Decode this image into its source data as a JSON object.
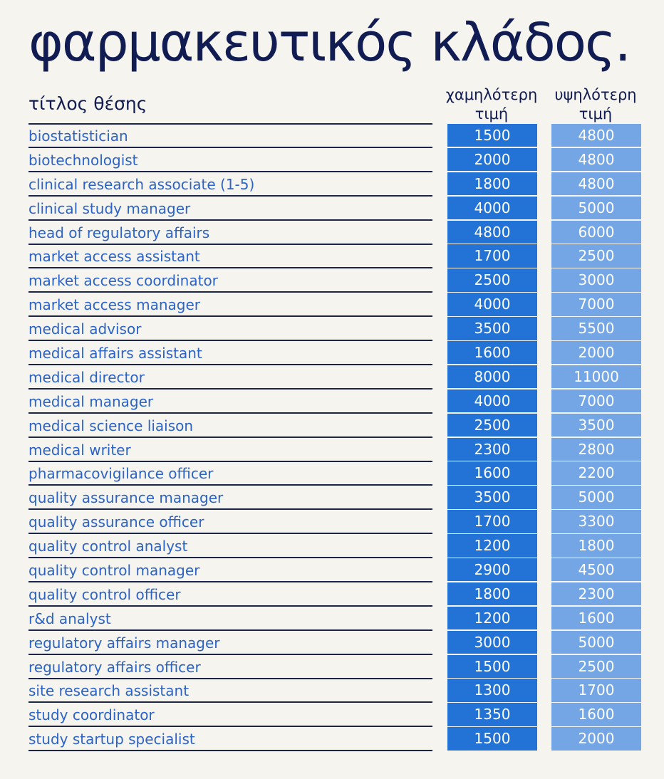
{
  "page": {
    "title": "φαρμακευτικός κλάδος."
  },
  "table": {
    "header": {
      "job_title": "τίτλος θέσης",
      "low_line1": "χαμηλότερη",
      "low_line2": "τιμή",
      "high_line1": "υψηλότερη",
      "high_line2": "τιμή"
    },
    "colors": {
      "low_cell": "#2373d6",
      "high_cell": "#74a6e6",
      "name_text": "#2b63c6",
      "title_text": "#111c52"
    },
    "rows": [
      {
        "title": "biostatistician",
        "low": "1500",
        "high": "4800"
      },
      {
        "title": "biotechnologist",
        "low": "2000",
        "high": "4800"
      },
      {
        "title": "clinical research associate (1-5)",
        "low": "1800",
        "high": "4800"
      },
      {
        "title": "clinical study manager",
        "low": "4000",
        "high": "5000"
      },
      {
        "title": "head of regulatory affairs",
        "low": "4800",
        "high": "6000"
      },
      {
        "title": "market access assistant",
        "low": "1700",
        "high": "2500"
      },
      {
        "title": "market access coordinator",
        "low": "2500",
        "high": "3000"
      },
      {
        "title": "market access manager",
        "low": "4000",
        "high": "7000"
      },
      {
        "title": "medical advisor",
        "low": "3500",
        "high": "5500"
      },
      {
        "title": "medical affairs assistant",
        "low": "1600",
        "high": "2000"
      },
      {
        "title": "medical director",
        "low": "8000",
        "high": "11000"
      },
      {
        "title": "medical manager",
        "low": "4000",
        "high": "7000"
      },
      {
        "title": "medical science liaison",
        "low": "2500",
        "high": "3500"
      },
      {
        "title": "medical writer",
        "low": "2300",
        "high": "2800"
      },
      {
        "title": "pharmacovigilance officer",
        "low": "1600",
        "high": "2200"
      },
      {
        "title": "quality assurance manager",
        "low": "3500",
        "high": "5000"
      },
      {
        "title": "quality assurance officer",
        "low": "1700",
        "high": "3300"
      },
      {
        "title": "quality control analyst",
        "low": "1200",
        "high": "1800"
      },
      {
        "title": "quality control manager",
        "low": "2900",
        "high": "4500"
      },
      {
        "title": "quality control officer",
        "low": "1800",
        "high": "2300"
      },
      {
        "title": "r&d analyst",
        "low": "1200",
        "high": "1600"
      },
      {
        "title": "regulatory affairs manager",
        "low": "3000",
        "high": "5000"
      },
      {
        "title": "regulatory affairs officer",
        "low": "1500",
        "high": "2500"
      },
      {
        "title": "site research assistant",
        "low": "1300",
        "high": "1700"
      },
      {
        "title": "study coordinator",
        "low": "1350",
        "high": "1600"
      },
      {
        "title": "study startup specialist",
        "low": "1500",
        "high": "2000"
      }
    ]
  }
}
